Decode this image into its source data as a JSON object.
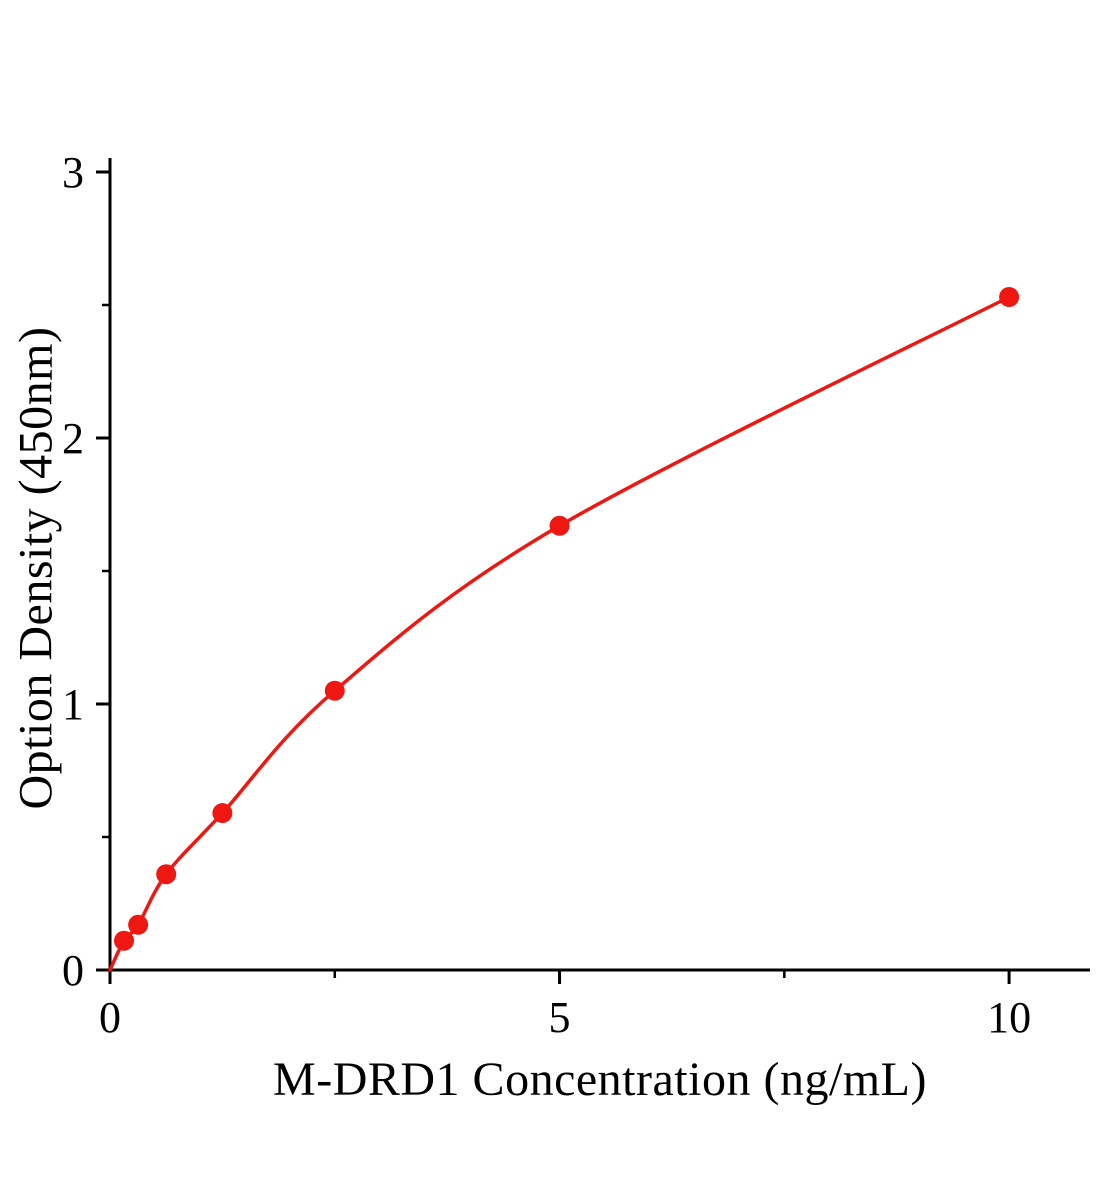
{
  "chart_data": {
    "type": "line",
    "title": "",
    "xlabel": "M-DRD1 Concentration (ng/mL)",
    "ylabel": "Option Density (450nm)",
    "x": [
      0.156,
      0.313,
      0.625,
      1.25,
      2.5,
      5,
      10
    ],
    "y": [
      0.11,
      0.17,
      0.36,
      0.59,
      1.05,
      1.67,
      2.53
    ],
    "curve_origin": {
      "x": 0,
      "y": 0
    },
    "xlim": [
      0,
      10.9
    ],
    "ylim": [
      0,
      3
    ],
    "x_major_ticks": [
      0,
      5,
      10
    ],
    "x_tick_labels": [
      "0",
      "5",
      "10"
    ],
    "x_minor_ticks": [
      2.5,
      7.5
    ],
    "y_major_ticks": [
      0,
      1,
      2,
      3
    ],
    "y_tick_labels": [
      "0",
      "1",
      "2",
      "3"
    ],
    "y_minor_ticks": [
      0.5,
      1.5,
      2.5
    ],
    "line_color": "#ee1711",
    "marker_color": "#ee1711",
    "axis_color": "#000000",
    "grid": false,
    "legend": null
  }
}
